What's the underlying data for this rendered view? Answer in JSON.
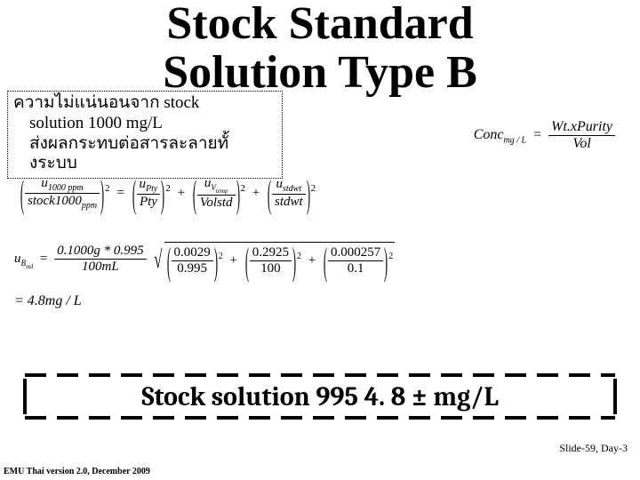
{
  "title_fontsize": 52,
  "title_line1": "Stock Standard",
  "title_line2": "Solution Type B",
  "note_fontsize": 19,
  "note_line1": "ความไม่แน่นอนจาก   stock",
  "note_line2": "solution 1000 mg/L",
  "note_line3": "ส่งผลกระทบต่อสารละลายทั้",
  "note_line4": "งระบบ",
  "conc_lhs_pre": "Conc",
  "conc_lhs_sub": "mg / L",
  "conc_num": "Wt.xPurity",
  "conc_den": "Vol",
  "eq1_t1_num_pre": "u",
  "eq1_t1_num_sub": "1000 ppm",
  "eq1_t1_den_pre": "stock",
  "eq1_t1_den_sub": "1000 ppm",
  "eq1_t2_num_pre": "u",
  "eq1_t2_num_sub": "Pty",
  "eq1_t2_den": "Pty",
  "eq1_t3_num_pre": "u",
  "eq1_t3_num_sub": "Vtemp",
  "eq1_t3_den": "Volstd",
  "eq1_t4_num_pre": "u",
  "eq1_t4_num_sub": "stdwt",
  "eq1_t4_den": "stdwt",
  "eq2_lhs_pre": "u",
  "eq2_lhs_sub": "Bstd",
  "eq2_main_num": "0.1000g * 0.995",
  "eq2_main_den": "100mL",
  "eq2_r1_num": "0.0029",
  "eq2_r1_den": "0.995",
  "eq2_r2_num": "0.2925",
  "eq2_r2_den": "100",
  "eq2_r3_num": "0.000257",
  "eq2_r3_den": "0.1",
  "eq3_val": "= 4.8mg / L",
  "exp2": "2",
  "result_fontsize": 30,
  "result_text": "Stock solution 995 4. 8 ± mg/L",
  "footer_right": "Slide-59, Day-3",
  "footer_left": "EMU Thai version 2.0, December 2009",
  "dash": {
    "w": 24,
    "h": 4,
    "gap": 12,
    "color": "#000000"
  }
}
